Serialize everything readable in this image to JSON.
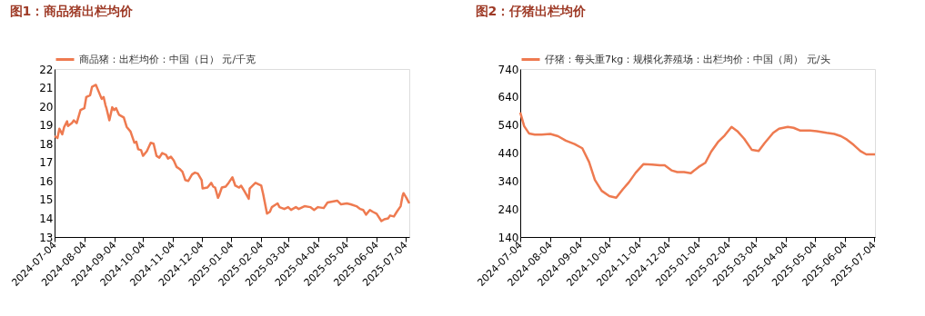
{
  "chart_data": [
    {
      "type": "line",
      "title": "图1：商品猪出栏均价",
      "legend": "top",
      "grid": false,
      "xlim": [
        "2024-07-04",
        "2025-07-08"
      ],
      "xticks": [
        "2024-07-04",
        "2024-08-04",
        "2024-09-04",
        "2024-10-04",
        "2024-11-04",
        "2024-12-04",
        "2025-01-04",
        "2025-02-04",
        "2025-03-04",
        "2025-04-04",
        "2025-05-04",
        "2025-06-04",
        "2025-07-04"
      ],
      "ylim": [
        13,
        22
      ],
      "yticks": [
        13,
        14,
        15,
        16,
        17,
        18,
        19,
        20,
        21,
        22
      ],
      "x": [
        "2024-07-04",
        "2024-07-07",
        "2024-07-09",
        "2024-07-12",
        "2024-07-14",
        "2024-07-17",
        "2024-07-18",
        "2024-07-22",
        "2024-07-24",
        "2024-07-27",
        "2024-07-31",
        "2024-08-04",
        "2024-08-06",
        "2024-08-10",
        "2024-08-12",
        "2024-08-16",
        "2024-08-18",
        "2024-08-22",
        "2024-08-24",
        "2024-08-26",
        "2024-08-27",
        "2024-08-30",
        "2024-09-02",
        "2024-09-04",
        "2024-09-06",
        "2024-09-09",
        "2024-09-14",
        "2024-09-17",
        "2024-09-21",
        "2024-09-25",
        "2024-09-27",
        "2024-09-29",
        "2024-10-02",
        "2024-10-04",
        "2024-10-08",
        "2024-10-12",
        "2024-10-15",
        "2024-10-18",
        "2024-10-21",
        "2024-10-24",
        "2024-10-28",
        "2024-10-30",
        "2024-11-02",
        "2024-11-05",
        "2024-11-08",
        "2024-11-11",
        "2024-11-14",
        "2024-11-17",
        "2024-11-20",
        "2024-11-24",
        "2024-11-27",
        "2024-11-30",
        "2024-12-04",
        "2024-12-05",
        "2024-12-10",
        "2024-12-14",
        "2024-12-16",
        "2024-12-18",
        "2024-12-21",
        "2024-12-22",
        "2024-12-25",
        "2024-12-29",
        "2025-01-01",
        "2025-01-05",
        "2025-01-08",
        "2025-01-12",
        "2025-01-14",
        "2025-01-17",
        "2025-01-22",
        "2025-01-23",
        "2025-01-27",
        "2025-01-29",
        "2025-02-04",
        "2025-02-06",
        "2025-02-10",
        "2025-02-13",
        "2025-02-15",
        "2025-02-18",
        "2025-02-21",
        "2025-02-23",
        "2025-02-28",
        "2025-03-04",
        "2025-03-07",
        "2025-03-12",
        "2025-03-15",
        "2025-03-21",
        "2025-03-27",
        "2025-03-31",
        "2025-04-04",
        "2025-04-10",
        "2025-04-14",
        "2025-04-19",
        "2025-04-24",
        "2025-04-28",
        "2025-05-04",
        "2025-05-08",
        "2025-05-14",
        "2025-05-18",
        "2025-05-21",
        "2025-05-24",
        "2025-05-28",
        "2025-05-31",
        "2025-06-04",
        "2025-06-09",
        "2025-06-12",
        "2025-06-16",
        "2025-06-18",
        "2025-06-22",
        "2025-06-25",
        "2025-06-29",
        "2025-07-01",
        "2025-07-02",
        "2025-07-05",
        "2025-07-08"
      ],
      "series": [
        {
          "name": "商品猪：出栏均价：中国（日） 元/千克",
          "color": "#ee7a50",
          "values": [
            18.4,
            18.3,
            18.8,
            18.5,
            18.9,
            19.2,
            18.95,
            19.1,
            19.25,
            19.1,
            19.8,
            19.9,
            20.5,
            20.6,
            21.05,
            21.15,
            20.9,
            20.4,
            20.5,
            20.05,
            19.9,
            19.25,
            19.95,
            19.8,
            19.9,
            19.55,
            19.4,
            18.9,
            18.65,
            18.05,
            18.1,
            17.7,
            17.65,
            17.35,
            17.6,
            18.05,
            18.0,
            17.35,
            17.25,
            17.5,
            17.4,
            17.2,
            17.3,
            17.1,
            16.75,
            16.65,
            16.5,
            16.05,
            16.0,
            16.35,
            16.45,
            16.4,
            16.05,
            15.6,
            15.65,
            15.9,
            15.7,
            15.65,
            15.1,
            15.2,
            15.65,
            15.7,
            15.9,
            16.2,
            15.75,
            15.65,
            15.75,
            15.5,
            15.05,
            15.6,
            15.8,
            15.9,
            15.75,
            15.3,
            14.25,
            14.35,
            14.6,
            14.7,
            14.8,
            14.6,
            14.5,
            14.6,
            14.45,
            14.6,
            14.5,
            14.65,
            14.6,
            14.45,
            14.6,
            14.55,
            14.85,
            14.9,
            14.95,
            14.75,
            14.8,
            14.75,
            14.65,
            14.5,
            14.45,
            14.2,
            14.45,
            14.35,
            14.25,
            13.85,
            13.95,
            14.0,
            14.15,
            14.1,
            14.35,
            14.65,
            15.2,
            15.35,
            15.1,
            14.8
          ]
        }
      ]
    },
    {
      "type": "line",
      "title": "图2：仔猪出栏均价",
      "legend": "top",
      "grid": false,
      "xlim": [
        "2024-07-04",
        "2025-07-05"
      ],
      "xticks": [
        "2024-07-04",
        "2024-08-04",
        "2024-09-04",
        "2024-10-04",
        "2024-11-04",
        "2024-12-04",
        "2025-01-04",
        "2025-02-04",
        "2025-03-04",
        "2025-04-04",
        "2025-05-04",
        "2025-06-04",
        "2025-07-04"
      ],
      "ylim": [
        140,
        740
      ],
      "yticks": [
        140,
        240,
        340,
        440,
        540,
        640,
        740
      ],
      "x": [
        "2024-07-04",
        "2024-07-08",
        "2024-07-13",
        "2024-07-19",
        "2024-07-26",
        "2024-08-04",
        "2024-08-12",
        "2024-08-20",
        "2024-08-29",
        "2024-09-06",
        "2024-09-13",
        "2024-09-19",
        "2024-09-26",
        "2024-10-04",
        "2024-10-11",
        "2024-10-18",
        "2024-10-24",
        "2024-10-31",
        "2024-11-08",
        "2024-11-17",
        "2024-11-25",
        "2024-11-30",
        "2024-12-07",
        "2024-12-13",
        "2024-12-20",
        "2024-12-27",
        "2025-01-04",
        "2025-01-11",
        "2025-01-17",
        "2025-01-24",
        "2025-01-31",
        "2025-02-07",
        "2025-02-13",
        "2025-02-20",
        "2025-02-28",
        "2025-03-07",
        "2025-03-13",
        "2025-03-22",
        "2025-03-28",
        "2025-04-06",
        "2025-04-12",
        "2025-04-19",
        "2025-04-29",
        "2025-05-06",
        "2025-05-16",
        "2025-05-24",
        "2025-05-31",
        "2025-06-06",
        "2025-06-13",
        "2025-06-20",
        "2025-06-26",
        "2025-07-05"
      ],
      "series": [
        {
          "name": "仔猪：每头重7kg：规模化养殖场：出栏均价：中国（周） 元/头",
          "color": "#ee7a50",
          "values": [
            585,
            536,
            510,
            506,
            506,
            508,
            500,
            484,
            472,
            457,
            408,
            344,
            305,
            286,
            280,
            311,
            335,
            369,
            400,
            399,
            396,
            396,
            378,
            372,
            372,
            368,
            390,
            405,
            445,
            479,
            503,
            533,
            518,
            491,
            451,
            447,
            475,
            512,
            527,
            533,
            530,
            520,
            520,
            518,
            512,
            508,
            500,
            488,
            469,
            447,
            435,
            435
          ]
        }
      ]
    }
  ]
}
